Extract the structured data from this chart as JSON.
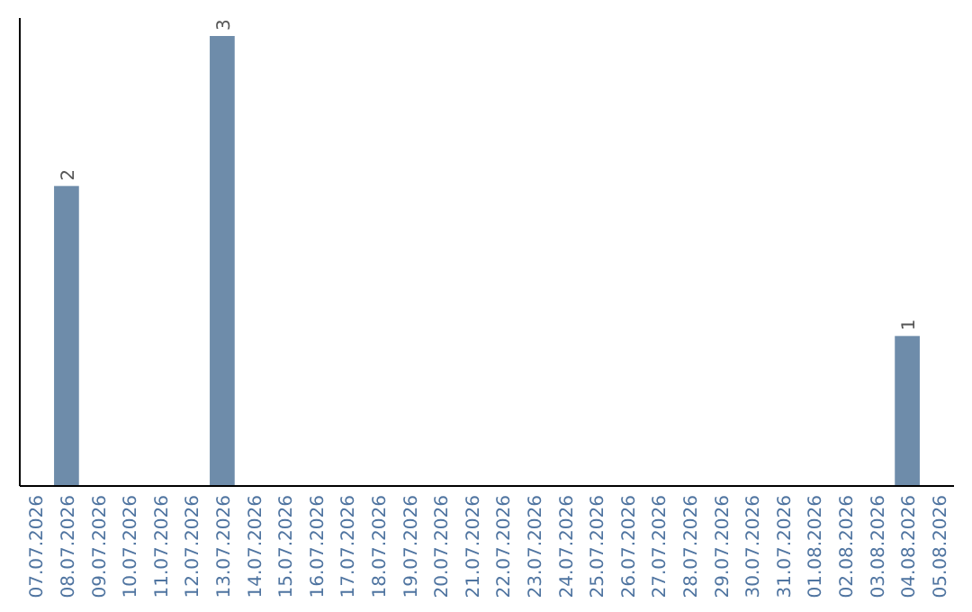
{
  "chart_data": {
    "type": "bar",
    "categories": [
      "07.07.2026",
      "08.07.2026",
      "09.07.2026",
      "10.07.2026",
      "11.07.2026",
      "12.07.2026",
      "13.07.2026",
      "14.07.2026",
      "15.07.2026",
      "16.07.2026",
      "17.07.2026",
      "18.07.2026",
      "19.07.2026",
      "20.07.2026",
      "21.07.2026",
      "22.07.2026",
      "23.07.2026",
      "24.07.2026",
      "25.07.2026",
      "26.07.2026",
      "27.07.2026",
      "28.07.2026",
      "29.07.2026",
      "30.07.2026",
      "31.07.2026",
      "01.08.2026",
      "02.08.2026",
      "03.08.2026",
      "04.08.2026",
      "05.08.2026"
    ],
    "values": [
      0,
      2,
      0,
      0,
      0,
      0,
      3,
      0,
      0,
      0,
      0,
      0,
      0,
      0,
      0,
      0,
      0,
      0,
      0,
      0,
      0,
      0,
      0,
      0,
      0,
      0,
      0,
      0,
      1,
      0
    ],
    "value_labels": [
      null,
      "2",
      null,
      null,
      null,
      null,
      "3",
      null,
      null,
      null,
      null,
      null,
      null,
      null,
      null,
      null,
      null,
      null,
      null,
      null,
      null,
      null,
      null,
      null,
      null,
      null,
      null,
      null,
      "1",
      null
    ],
    "color": "#6e8caa",
    "tick_labels": "x"
  }
}
